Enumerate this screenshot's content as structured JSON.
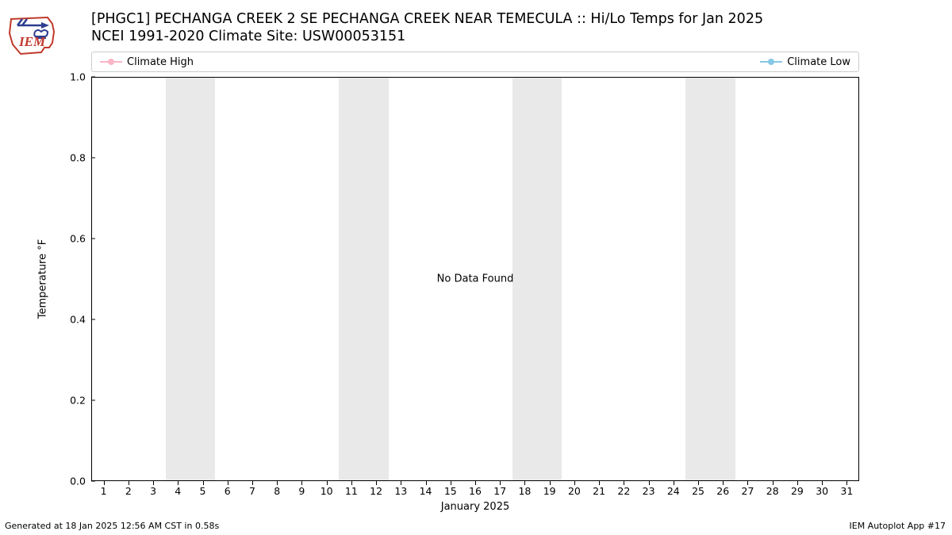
{
  "logo": {
    "text": "IEM",
    "outline_color": "#c0392b",
    "arrow_color": "#2c3e8f",
    "cloud_color": "#2c3e8f"
  },
  "title": {
    "line1": "[PHGC1] PECHANGA CREEK 2 SE PECHANGA CREEK NEAR TEMECULA :: Hi/Lo Temps for Jan 2025",
    "line2": "NCEI 1991-2020 Climate Site: USW00053151",
    "fontsize": 17.5
  },
  "legend": {
    "items": [
      {
        "label": "Climate High",
        "color": "#fbb5c5"
      },
      {
        "label": "Climate Low",
        "color": "#87c7e8"
      }
    ],
    "border_color": "#cccccc"
  },
  "chart": {
    "type": "line",
    "background_color": "#ffffff",
    "border_color": "#000000",
    "ylabel": "Temperature °F",
    "xlabel": "January 2025",
    "ylim": [
      0.0,
      1.0
    ],
    "ytick_step": 0.2,
    "yticks": [
      "0.0",
      "0.2",
      "0.4",
      "0.6",
      "0.8",
      "1.0"
    ],
    "xlim": [
      0.5,
      31.5
    ],
    "xticks": [
      "1",
      "2",
      "3",
      "4",
      "5",
      "6",
      "7",
      "8",
      "9",
      "10",
      "11",
      "12",
      "13",
      "14",
      "15",
      "16",
      "17",
      "18",
      "19",
      "20",
      "21",
      "22",
      "23",
      "24",
      "25",
      "26",
      "27",
      "28",
      "29",
      "30",
      "31"
    ],
    "weekend_shading": {
      "color": "#e9e9e9",
      "ranges_days": [
        [
          3.5,
          5.5
        ],
        [
          10.5,
          12.5
        ],
        [
          17.5,
          19.5
        ],
        [
          24.5,
          26.5
        ]
      ]
    },
    "center_message": "No Data Found",
    "label_fontsize": 13,
    "tick_fontsize": 12.5
  },
  "footer": {
    "left": "Generated at 18 Jan 2025 12:56 AM CST in 0.58s",
    "right": "IEM Autoplot App #17",
    "fontsize": 11
  }
}
